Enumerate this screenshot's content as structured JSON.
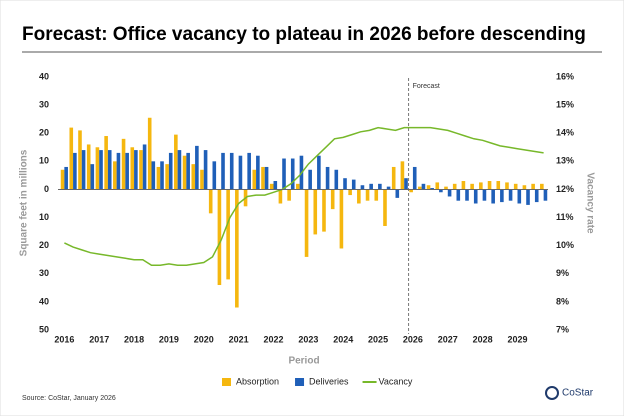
{
  "chart_data": {
    "type": "bar",
    "title": "Forecast: Office vacancy to plateau in 2026 before descending",
    "y_label": "Square feet in millions",
    "y2_label": "Vacancy rate",
    "x_label": "Period",
    "annotation": "Forecast",
    "source": "Source: CoStar, January 2026",
    "logo": "CoStar",
    "categories": [
      "2016",
      null,
      null,
      null,
      "2017",
      null,
      null,
      null,
      "2018",
      null,
      null,
      null,
      "2019",
      null,
      null,
      null,
      "2020",
      null,
      null,
      null,
      "2021",
      null,
      null,
      null,
      "2022",
      null,
      null,
      null,
      "2023",
      null,
      null,
      null,
      "2024",
      null,
      null,
      null,
      "2025",
      null,
      null,
      null,
      "2026",
      null,
      null,
      null,
      "2027",
      null,
      null,
      null,
      "2028",
      null,
      null,
      null,
      "2029",
      null,
      null,
      null
    ],
    "series": [
      {
        "name": "Absorption",
        "color": "#f5b70f",
        "values": [
          7,
          22,
          21,
          16,
          15,
          19,
          10,
          18,
          15,
          14,
          25.5,
          8,
          9,
          19.5,
          12,
          9,
          7,
          -8.5,
          -34,
          -32,
          -42,
          -6,
          7,
          8,
          2,
          -5,
          -4,
          2,
          -24,
          -16,
          -15,
          -7,
          -21,
          -2,
          -5,
          -4,
          -4,
          -13,
          8,
          10,
          -1,
          1,
          1.5,
          2.5,
          1,
          2,
          3,
          2,
          2.5,
          3,
          3,
          2.5,
          2,
          1.5,
          2,
          2
        ]
      },
      {
        "name": "Deliveries",
        "color": "#1f5fb8",
        "values": [
          8,
          13,
          14,
          9,
          14,
          14,
          13,
          13,
          14,
          16,
          10,
          10,
          13,
          14,
          13,
          15.5,
          14,
          10,
          13,
          13,
          12,
          13,
          12,
          8,
          3,
          11,
          11,
          12,
          7,
          12,
          8,
          7,
          4,
          3.5,
          1.5,
          2,
          2,
          1,
          -3,
          4,
          8,
          2,
          0.5,
          -1,
          -2.5,
          -4,
          -4,
          -5,
          -4,
          -5,
          -4.5,
          -4,
          -5,
          -5.5,
          -4.5,
          -4
        ]
      },
      {
        "name": "Vacancy",
        "color": "#77b82a",
        "axis": "y2",
        "values": [
          10.1,
          9.95,
          9.85,
          9.75,
          9.7,
          9.65,
          9.6,
          9.55,
          9.5,
          9.5,
          9.3,
          9.3,
          9.35,
          9.3,
          9.3,
          9.35,
          9.4,
          9.6,
          10.2,
          11.0,
          11.5,
          11.75,
          11.8,
          11.8,
          11.9,
          12.0,
          12.2,
          12.5,
          12.9,
          13.2,
          13.5,
          13.8,
          13.85,
          13.95,
          14.05,
          14.1,
          14.2,
          14.15,
          14.1,
          14.2,
          14.2,
          14.2,
          14.2,
          14.15,
          14.1,
          14.0,
          13.9,
          13.8,
          13.75,
          13.65,
          13.55,
          13.5,
          13.45,
          13.4,
          13.35,
          13.3
        ]
      }
    ],
    "ylim": [
      -50,
      40
    ],
    "yticks": [
      {
        "value": -50,
        "label": "50"
      },
      {
        "value": -40,
        "label": "40"
      },
      {
        "value": -30,
        "label": "30"
      },
      {
        "value": -20,
        "label": "20"
      },
      {
        "value": -10,
        "label": "10"
      },
      0,
      10,
      20,
      30,
      40
    ],
    "y2lim": [
      7,
      16
    ],
    "y2ticks": [
      {
        "value": 7,
        "label": "7%"
      },
      {
        "value": 8,
        "label": "8%"
      },
      {
        "value": 9,
        "label": "9%"
      },
      {
        "value": 10,
        "label": "10%"
      },
      {
        "value": 11,
        "label": "11%"
      },
      {
        "value": 12,
        "label": "12%"
      },
      {
        "value": 13,
        "label": "13%"
      },
      {
        "value": 14,
        "label": "14%"
      },
      {
        "value": 15,
        "label": "15%"
      },
      {
        "value": 16,
        "label": "16%"
      }
    ],
    "legend": "bottom"
  }
}
